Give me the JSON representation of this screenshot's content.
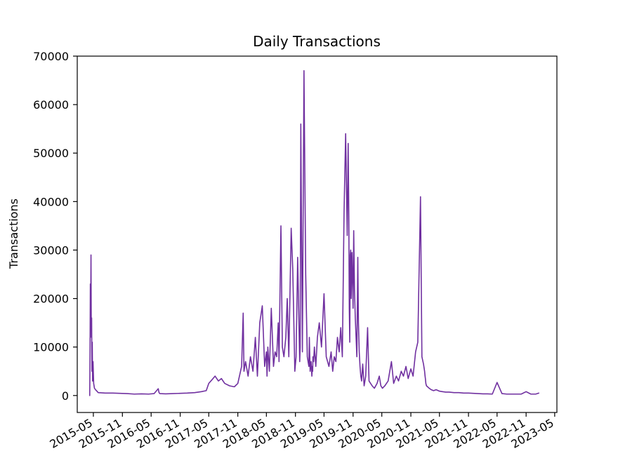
{
  "chart_data": {
    "type": "line",
    "title": "Daily Transactions",
    "xlabel": "",
    "ylabel": "Transactions",
    "x_type": "date",
    "xlim": [
      "2015-01-19",
      "2023-05-15"
    ],
    "ylim": [
      -3500,
      70000
    ],
    "y_ticks": [
      0,
      10000,
      20000,
      30000,
      40000,
      50000,
      60000,
      70000
    ],
    "x_ticks": [
      "2015-05-01",
      "2015-11-01",
      "2016-05-01",
      "2016-11-01",
      "2017-05-01",
      "2017-11-01",
      "2018-05-01",
      "2018-11-01",
      "2019-05-01",
      "2019-11-01",
      "2020-05-01",
      "2020-11-01",
      "2021-05-01",
      "2021-11-01",
      "2022-05-01",
      "2022-11-01",
      "2023-05-01"
    ],
    "x_tick_labels": [
      "2015-05",
      "2015-11",
      "2016-05",
      "2016-11",
      "2017-05",
      "2017-11",
      "2018-05",
      "2018-11",
      "2019-05",
      "2019-11",
      "2020-05",
      "2020-11",
      "2021-05",
      "2021-11",
      "2022-05",
      "2022-11",
      "2023-05"
    ],
    "grid": false,
    "series": [
      {
        "color": "#7030a0",
        "x": [
          "2015-04-08",
          "2015-04-10",
          "2015-04-12",
          "2015-04-14",
          "2015-04-16",
          "2015-04-18",
          "2015-04-20",
          "2015-04-22",
          "2015-04-24",
          "2015-04-26",
          "2015-04-29",
          "2015-05-03",
          "2015-05-08",
          "2015-05-15",
          "2015-06-01",
          "2015-07-15",
          "2015-09-01",
          "2015-10-15",
          "2015-12-01",
          "2016-01-15",
          "2016-03-01",
          "2016-04-15",
          "2016-05-20",
          "2016-06-15",
          "2016-06-20",
          "2016-06-25",
          "2016-08-01",
          "2016-09-15",
          "2016-11-01",
          "2016-12-15",
          "2017-02-01",
          "2017-03-15",
          "2017-04-15",
          "2017-05-01",
          "2017-05-20",
          "2017-06-10",
          "2017-07-01",
          "2017-07-20",
          "2017-08-10",
          "2017-09-10",
          "2017-10-10",
          "2017-11-01",
          "2017-11-25",
          "2017-12-05",
          "2017-12-10",
          "2017-12-20",
          "2018-01-05",
          "2018-01-20",
          "2018-02-05",
          "2018-02-20",
          "2018-03-05",
          "2018-03-20",
          "2018-04-05",
          "2018-04-20",
          "2018-05-01",
          "2018-05-05",
          "2018-05-10",
          "2018-05-20",
          "2018-06-01",
          "2018-06-15",
          "2018-06-25",
          "2018-07-05",
          "2018-07-15",
          "2018-07-20",
          "2018-08-01",
          "2018-08-10",
          "2018-08-20",
          "2018-09-01",
          "2018-09-10",
          "2018-09-20",
          "2018-10-05",
          "2018-10-15",
          "2018-10-25",
          "2018-10-28",
          "2018-11-05",
          "2018-11-15",
          "2018-11-28",
          "2018-12-01",
          "2018-12-05",
          "2018-12-15",
          "2018-12-25",
          "2019-01-05",
          "2019-01-15",
          "2019-01-25",
          "2019-01-28",
          "2019-02-02",
          "2019-02-08",
          "2019-02-13",
          "2019-02-16",
          "2019-02-18",
          "2019-02-20",
          "2019-02-24",
          "2019-03-01",
          "2019-03-10",
          "2019-03-20",
          "2019-04-01",
          "2019-04-15",
          "2019-05-01",
          "2019-05-15",
          "2019-06-01",
          "2019-06-15",
          "2019-06-25",
          "2019-07-05",
          "2019-07-15",
          "2019-07-25",
          "2019-08-05",
          "2019-08-15",
          "2019-08-25",
          "2019-09-05",
          "2019-09-15",
          "2019-09-25",
          "2019-10-01",
          "2019-10-05",
          "2019-10-08",
          "2019-10-11",
          "2019-10-14",
          "2019-10-17",
          "2019-10-20",
          "2019-10-25",
          "2019-11-01",
          "2019-11-05",
          "2019-11-10",
          "2019-11-15",
          "2019-11-20",
          "2019-11-25",
          "2019-12-01",
          "2019-12-05",
          "2019-12-10",
          "2019-12-15",
          "2019-12-20",
          "2019-12-25",
          "2020-01-01",
          "2020-01-10",
          "2020-01-20",
          "2020-02-01",
          "2020-02-10",
          "2020-02-20",
          "2020-03-01",
          "2020-03-15",
          "2020-04-01",
          "2020-04-15",
          "2020-04-20",
          "2020-04-25",
          "2020-05-05",
          "2020-05-20",
          "2020-06-10",
          "2020-07-01",
          "2020-07-15",
          "2020-08-01",
          "2020-08-15",
          "2020-09-01",
          "2020-09-15",
          "2020-10-01",
          "2020-10-15",
          "2020-11-01",
          "2020-11-15",
          "2020-12-01",
          "2020-12-15",
          "2021-01-01",
          "2021-01-10",
          "2021-01-20",
          "2021-01-27",
          "2021-01-30",
          "2021-02-01",
          "2021-02-04",
          "2021-02-08",
          "2021-02-15",
          "2021-02-25",
          "2021-03-10",
          "2021-03-25",
          "2021-04-10",
          "2021-05-01",
          "2021-05-20",
          "2021-06-10",
          "2021-07-01",
          "2021-08-01",
          "2021-09-01",
          "2021-10-01",
          "2021-11-01",
          "2021-12-01",
          "2022-01-01",
          "2022-02-01",
          "2022-03-01",
          "2022-04-01",
          "2022-05-01",
          "2022-06-01",
          "2022-07-01",
          "2022-08-01",
          "2022-09-01",
          "2022-10-01",
          "2022-11-01",
          "2022-12-01",
          "2023-01-01",
          "2023-01-20"
        ],
        "y": [
          0,
          8000,
          23000,
          16000,
          29000,
          12000,
          16000,
          5000,
          11000,
          3000,
          7000,
          2500,
          1500,
          1200,
          600,
          500,
          500,
          450,
          400,
          300,
          350,
          300,
          400,
          1400,
          600,
          400,
          350,
          400,
          450,
          500,
          600,
          800,
          1000,
          2500,
          3200,
          4000,
          3000,
          3500,
          2500,
          2000,
          1800,
          2500,
          6000,
          17000,
          5000,
          7000,
          4000,
          8000,
          5000,
          12000,
          4000,
          15000,
          18500,
          6000,
          9000,
          4000,
          10000,
          5000,
          18000,
          6000,
          9000,
          8000,
          15000,
          7000,
          35000,
          10000,
          8000,
          12000,
          20000,
          8000,
          34500,
          26000,
          10000,
          5000,
          8000,
          28500,
          7000,
          10000,
          56000,
          9000,
          67000,
          25000,
          8000,
          6000,
          12000,
          5000,
          7000,
          4000,
          6000,
          5000,
          8000,
          7000,
          10000,
          6000,
          12000,
          15000,
          10000,
          21000,
          8000,
          6000,
          9000,
          5000,
          8000,
          7000,
          12000,
          9000,
          14000,
          8000,
          38000,
          54000,
          33000,
          52000,
          37000,
          18000,
          11000,
          29000,
          30000,
          20000,
          29500,
          18000,
          34000,
          22000,
          16000,
          12000,
          8000,
          28500,
          15000,
          9000,
          6000,
          4000,
          3000,
          6500,
          2000,
          4000,
          14000,
          3000,
          2500,
          2000,
          1500,
          2500,
          4000,
          3000,
          2000,
          1500,
          2000,
          3000,
          7000,
          2500,
          4000,
          3000,
          5000,
          4000,
          6000,
          3500,
          5500,
          4000,
          9000,
          11000,
          41000,
          8000,
          6500,
          5000,
          4000,
          3500,
          2500,
          2000,
          1800,
          1500,
          1200,
          1000,
          1200,
          900,
          800,
          700,
          700,
          600,
          600,
          500,
          500,
          450,
          400,
          350,
          350,
          300,
          2700,
          400,
          300,
          300,
          300,
          300,
          800,
          300,
          300,
          500
        ]
      }
    ]
  }
}
